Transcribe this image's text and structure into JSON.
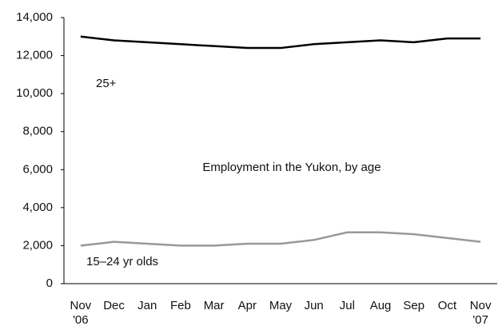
{
  "chart_data": {
    "type": "line",
    "title": "Employment in the Yukon, by age",
    "categories": [
      "Nov '06",
      "Dec",
      "Jan",
      "Feb",
      "Mar",
      "Apr",
      "May",
      "Jun",
      "Jul",
      "Aug",
      "Sep",
      "Oct",
      "Nov '07"
    ],
    "series": [
      {
        "name": "25+",
        "color": "#000000",
        "values": [
          13000,
          12800,
          12700,
          12600,
          12500,
          12400,
          12400,
          12600,
          12700,
          12800,
          12700,
          12900,
          12900
        ]
      },
      {
        "name": "15–24 yr olds",
        "color": "#999999",
        "values": [
          2000,
          2200,
          2100,
          2000,
          2000,
          2100,
          2100,
          2300,
          2700,
          2700,
          2600,
          2400,
          2200
        ]
      }
    ],
    "ylim": [
      0,
      14000
    ],
    "yticks": [
      0,
      {
        "value": 2000,
        "label": "2,000"
      },
      {
        "value": 4000,
        "label": "4,000"
      },
      {
        "value": 6000,
        "label": "6,000"
      },
      {
        "value": 8000,
        "label": "8,000"
      },
      {
        "value": 10000,
        "label": "10,000"
      },
      {
        "value": 12000,
        "label": "12,000"
      },
      {
        "value": 14000,
        "label": "14,000"
      }
    ]
  }
}
